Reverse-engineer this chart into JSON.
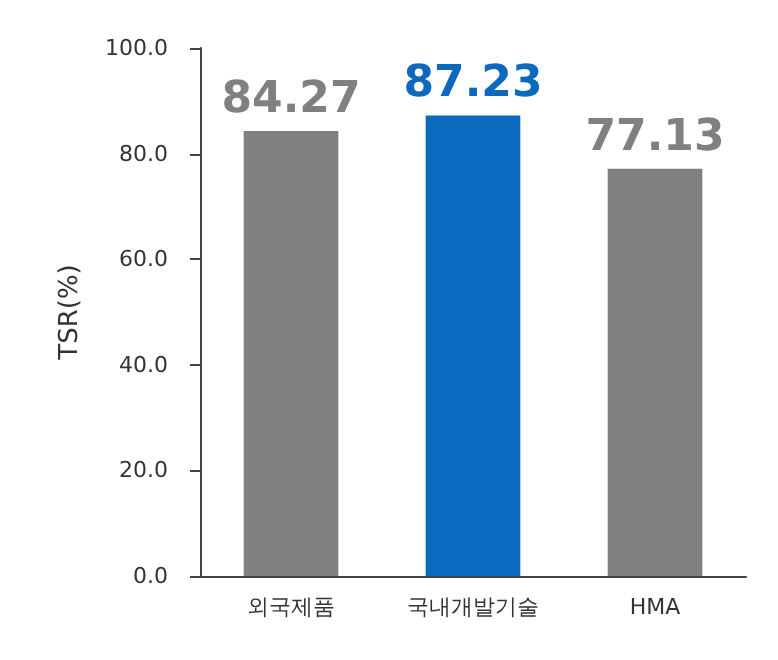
{
  "chart_data": {
    "type": "bar",
    "ylabel": "TSR(%)",
    "categories": [
      "외국제품",
      "국내개발기술",
      "HMA"
    ],
    "values": [
      84.27,
      87.23,
      77.13
    ],
    "colors": [
      "#808080",
      "#0b69c0",
      "#808080"
    ],
    "ylim": [
      0,
      100
    ],
    "yticks": [
      {
        "value": 0,
        "label": "0.0"
      },
      {
        "value": 20,
        "label": "20.0"
      },
      {
        "value": 40,
        "label": "40.0"
      },
      {
        "value": 60,
        "label": "60.0"
      },
      {
        "value": 80,
        "label": "80.0"
      },
      {
        "value": 100,
        "label": "100.0"
      }
    ],
    "grid": false,
    "data_labels": true
  }
}
